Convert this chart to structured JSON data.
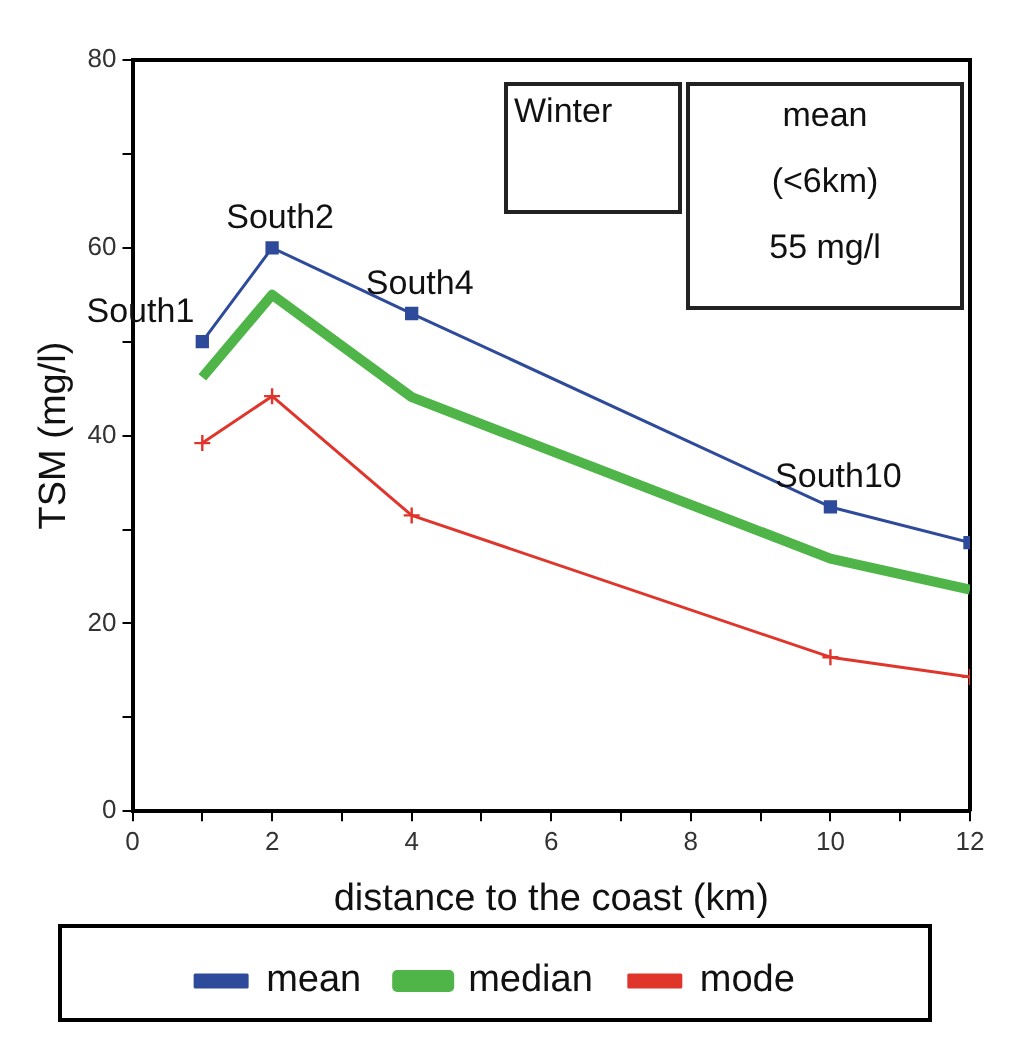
{
  "chart_data": {
    "type": "line",
    "xlabel": "distance to the coast (km)",
    "ylabel": "TSM (mg/l)",
    "xlim": [
      0,
      12
    ],
    "ylim": [
      0,
      80
    ],
    "xticks": [
      0,
      {
        "value": 1,
        "label": null
      },
      2,
      {
        "value": 3,
        "label": null
      },
      4,
      {
        "value": 5,
        "label": null
      },
      6,
      {
        "value": 7,
        "label": null
      },
      8,
      {
        "value": 9,
        "label": null
      },
      10,
      {
        "value": 11,
        "label": null
      },
      12
    ],
    "yticks": [
      0,
      {
        "value": 10,
        "label": null
      },
      20,
      {
        "value": 30,
        "label": null
      },
      40,
      {
        "value": 50,
        "label": null
      },
      60,
      {
        "value": 70,
        "label": null
      },
      80
    ],
    "x": [
      1,
      2,
      4,
      10,
      12
    ],
    "series": [
      {
        "name": "mean",
        "color": "#2e4a9a",
        "marker": "square",
        "values": [
          50,
          60,
          53,
          32.4,
          28.6
        ]
      },
      {
        "name": "median",
        "color": "#4fb548",
        "marker": "none",
        "values": [
          46.2,
          55,
          44.1,
          26.9,
          23.6
        ]
      },
      {
        "name": "mode",
        "color": "#e0352b",
        "marker": "cross",
        "values": [
          39.2,
          44.2,
          31.5,
          16.4,
          14.3
        ]
      }
    ],
    "annotations": [
      {
        "text": "South1",
        "x": 1,
        "y": 50
      },
      {
        "text": "South2",
        "x": 2,
        "y": 60
      },
      {
        "text": "South4",
        "x": 4,
        "y": 53
      },
      {
        "text": "South10",
        "x": 10,
        "y": 32.4
      },
      "Winter",
      "mean\n(<6km)\n55 mg/l"
    ],
    "grid": false,
    "legend": "bottom",
    "line_style": "solid"
  }
}
